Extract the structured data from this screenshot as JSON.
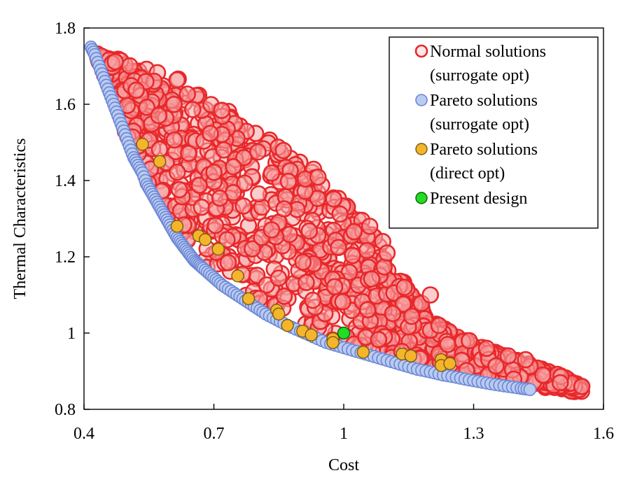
{
  "chart_data": {
    "type": "scatter",
    "xlabel": "Cost",
    "ylabel": "Thermal Characteristics",
    "xlim": [
      0.4,
      1.6
    ],
    "ylim": [
      0.8,
      1.8
    ],
    "x_ticks": [
      "0.4",
      "0.7",
      "1",
      "1.3",
      "1.6"
    ],
    "y_ticks": [
      "0.8",
      "1",
      "1.2",
      "1.4",
      "1.6",
      "1.8"
    ],
    "grid": false,
    "legend_position": "top-right",
    "legend": [
      {
        "series": "normal",
        "lines": [
          "Normal solutions",
          "(surrogate opt)"
        ]
      },
      {
        "series": "pareto_surrogate",
        "lines": [
          "Pareto solutions",
          "(surrogate opt)"
        ]
      },
      {
        "series": "pareto_direct",
        "lines": [
          "Pareto solutions",
          "(direct opt)"
        ]
      },
      {
        "series": "present",
        "lines": [
          "Present design"
        ]
      }
    ],
    "series": [
      {
        "id": "normal",
        "name": "Normal solutions (surrogate opt)",
        "marker": "hollow-circle",
        "color": "#e8282b",
        "fill": "#f7a4a4",
        "description": "dense cloud bounded below by the Pareto front and above by the upper envelope",
        "upper_envelope": [
          [
            0.43,
            1.74
          ],
          [
            0.5,
            1.71
          ],
          [
            0.6,
            1.68
          ],
          [
            0.7,
            1.61
          ],
          [
            0.8,
            1.53
          ],
          [
            0.9,
            1.47
          ],
          [
            1.0,
            1.34
          ],
          [
            1.07,
            1.27
          ],
          [
            1.1,
            1.18
          ],
          [
            1.15,
            1.12
          ],
          [
            1.22,
            1.02
          ],
          [
            1.3,
            0.97
          ],
          [
            1.4,
            0.93
          ],
          [
            1.5,
            0.89
          ],
          [
            1.55,
            0.86
          ]
        ],
        "outliers": [
          [
            1.06,
            1.28
          ],
          [
            1.09,
            1.24
          ],
          [
            1.1,
            1.21
          ],
          [
            1.14,
            1.12
          ],
          [
            1.2,
            1.1
          ],
          [
            1.22,
            1.02
          ],
          [
            1.29,
            0.98
          ],
          [
            1.33,
            0.96
          ],
          [
            1.38,
            0.94
          ],
          [
            1.42,
            0.93
          ],
          [
            1.46,
            0.89
          ],
          [
            1.5,
            0.87
          ],
          [
            1.55,
            0.86
          ]
        ]
      },
      {
        "id": "pareto_surrogate",
        "name": "Pareto solutions (surrogate opt)",
        "marker": "filled-circle",
        "color": "#6b86d6",
        "fill": "#b9cbf0",
        "points": [
          [
            0.416,
            1.75
          ],
          [
            0.425,
            1.73
          ],
          [
            0.435,
            1.7
          ],
          [
            0.445,
            1.67
          ],
          [
            0.455,
            1.64
          ],
          [
            0.465,
            1.61
          ],
          [
            0.475,
            1.58
          ],
          [
            0.485,
            1.55
          ],
          [
            0.495,
            1.52
          ],
          [
            0.505,
            1.49
          ],
          [
            0.515,
            1.46
          ],
          [
            0.525,
            1.44
          ],
          [
            0.535,
            1.42
          ],
          [
            0.545,
            1.39
          ],
          [
            0.555,
            1.37
          ],
          [
            0.565,
            1.35
          ],
          [
            0.575,
            1.33
          ],
          [
            0.585,
            1.31
          ],
          [
            0.595,
            1.29
          ],
          [
            0.605,
            1.27
          ],
          [
            0.615,
            1.25
          ],
          [
            0.625,
            1.235
          ],
          [
            0.635,
            1.22
          ],
          [
            0.645,
            1.205
          ],
          [
            0.655,
            1.19
          ],
          [
            0.665,
            1.18
          ],
          [
            0.675,
            1.17
          ],
          [
            0.69,
            1.155
          ],
          [
            0.705,
            1.14
          ],
          [
            0.72,
            1.125
          ],
          [
            0.74,
            1.11
          ],
          [
            0.76,
            1.095
          ],
          [
            0.78,
            1.08
          ],
          [
            0.8,
            1.065
          ],
          [
            0.82,
            1.05
          ],
          [
            0.845,
            1.035
          ],
          [
            0.87,
            1.02
          ],
          [
            0.9,
            1.005
          ],
          [
            0.93,
            0.99
          ],
          [
            0.96,
            0.975
          ],
          [
            0.99,
            0.965
          ],
          [
            1.02,
            0.955
          ],
          [
            1.05,
            0.945
          ],
          [
            1.08,
            0.935
          ],
          [
            1.11,
            0.925
          ],
          [
            1.14,
            0.915
          ],
          [
            1.17,
            0.905
          ],
          [
            1.2,
            0.898
          ],
          [
            1.23,
            0.89
          ],
          [
            1.26,
            0.884
          ],
          [
            1.29,
            0.877
          ],
          [
            1.32,
            0.871
          ],
          [
            1.35,
            0.865
          ],
          [
            1.38,
            0.86
          ],
          [
            1.41,
            0.855
          ],
          [
            1.43,
            0.852
          ]
        ]
      },
      {
        "id": "pareto_direct",
        "name": "Pareto solutions (direct opt)",
        "marker": "filled-circle",
        "color": "#7a5a10",
        "fill": "#f5b52a",
        "points": [
          [
            0.535,
            1.495
          ],
          [
            0.575,
            1.45
          ],
          [
            0.615,
            1.28
          ],
          [
            0.665,
            1.255
          ],
          [
            0.68,
            1.245
          ],
          [
            0.71,
            1.22
          ],
          [
            0.755,
            1.15
          ],
          [
            0.78,
            1.09
          ],
          [
            0.845,
            1.06
          ],
          [
            0.85,
            1.05
          ],
          [
            0.87,
            1.02
          ],
          [
            0.905,
            1.005
          ],
          [
            0.925,
            0.995
          ],
          [
            0.975,
            0.985
          ],
          [
            0.975,
            0.975
          ],
          [
            1.045,
            0.95
          ],
          [
            1.135,
            0.945
          ],
          [
            1.155,
            0.94
          ],
          [
            1.225,
            0.93
          ],
          [
            1.225,
            0.915
          ],
          [
            1.245,
            0.92
          ]
        ]
      },
      {
        "id": "present",
        "name": "Present design",
        "marker": "filled-circle",
        "color": "#0d5f0d",
        "fill": "#22dd22",
        "points": [
          [
            1.0,
            1.0
          ]
        ]
      }
    ]
  }
}
